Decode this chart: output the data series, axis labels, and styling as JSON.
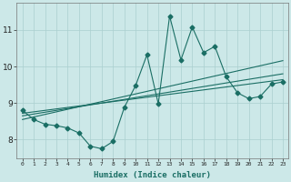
{
  "xlabel": "Humidex (Indice chaleur)",
  "bg_color": "#cce8e8",
  "grid_color": "#aacfcf",
  "line_color": "#1a6e64",
  "x_data": [
    0,
    1,
    2,
    3,
    4,
    5,
    6,
    7,
    8,
    9,
    10,
    11,
    12,
    13,
    14,
    15,
    16,
    17,
    18,
    19,
    20,
    21,
    22,
    23
  ],
  "y_main": [
    8.8,
    8.55,
    8.42,
    8.38,
    8.32,
    8.18,
    7.82,
    7.75,
    7.95,
    8.88,
    9.48,
    10.32,
    8.98,
    11.38,
    10.18,
    11.08,
    10.38,
    10.55,
    9.72,
    9.28,
    9.12,
    9.18,
    9.52,
    9.58
  ],
  "y_reg1": [
    8.72,
    8.76,
    8.8,
    8.84,
    8.88,
    8.92,
    8.96,
    9.0,
    9.04,
    9.08,
    9.12,
    9.16,
    9.2,
    9.24,
    9.28,
    9.32,
    9.36,
    9.4,
    9.44,
    9.48,
    9.52,
    9.56,
    9.6,
    9.64
  ],
  "y_reg2": [
    8.65,
    8.7,
    8.75,
    8.8,
    8.85,
    8.9,
    8.95,
    9.0,
    9.05,
    9.1,
    9.15,
    9.2,
    9.25,
    9.3,
    9.35,
    9.4,
    9.45,
    9.5,
    9.55,
    9.6,
    9.65,
    9.7,
    9.75,
    9.8
  ],
  "y_reg3": [
    8.55,
    8.62,
    8.69,
    8.76,
    8.83,
    8.9,
    8.97,
    9.04,
    9.11,
    9.18,
    9.25,
    9.32,
    9.39,
    9.46,
    9.53,
    9.6,
    9.67,
    9.74,
    9.81,
    9.88,
    9.95,
    10.02,
    10.09,
    10.16
  ],
  "ylim": [
    7.5,
    11.75
  ],
  "yticks": [
    8,
    9,
    10,
    11
  ],
  "xtick_labels": [
    "0",
    "1",
    "2",
    "3",
    "4",
    "5",
    "6",
    "7",
    "8",
    "9",
    "10",
    "11",
    "12",
    "13",
    "14",
    "15",
    "16",
    "17",
    "18",
    "19",
    "20",
    "21",
    "22",
    "23"
  ],
  "marker": "D",
  "marker_size": 2.5,
  "line_width": 0.8
}
